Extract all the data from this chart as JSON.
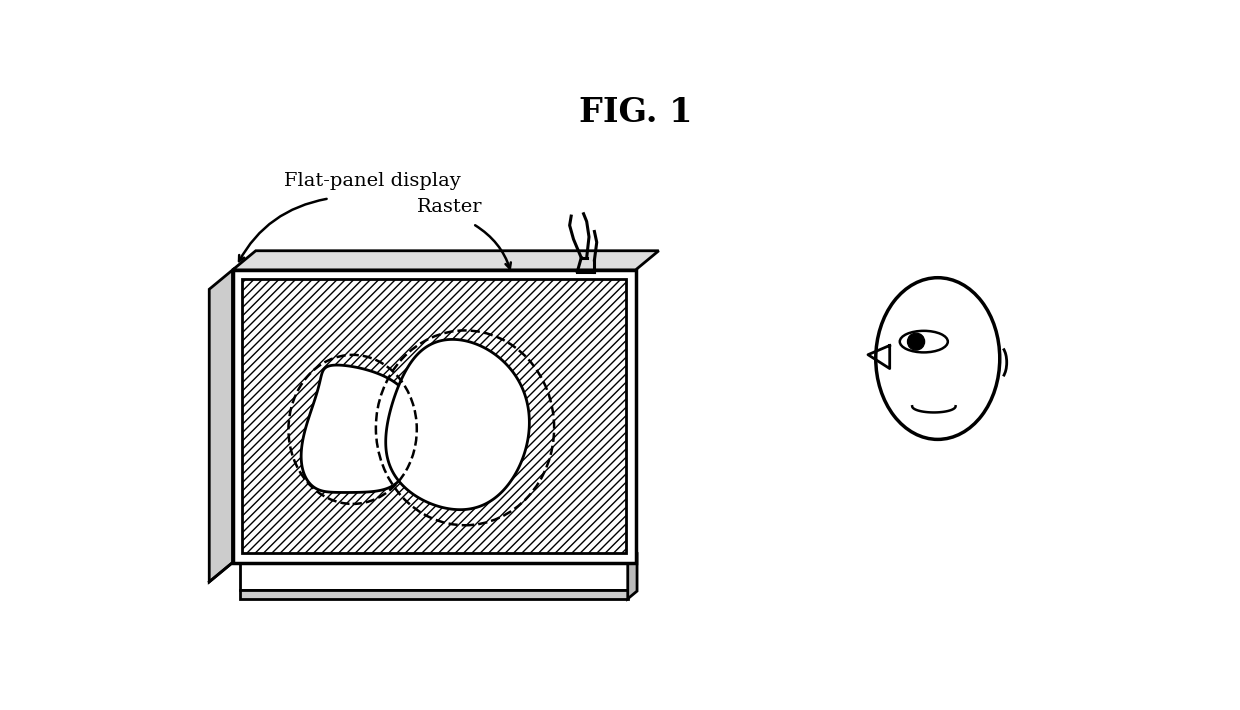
{
  "title": "FIG. 1",
  "title_fontsize": 24,
  "title_fontweight": "bold",
  "bg_color": "#ffffff",
  "label_flat_panel": "Flat-panel display",
  "label_raster": "Raster",
  "fig_width": 12.4,
  "fig_height": 7.1,
  "dpi": 100
}
